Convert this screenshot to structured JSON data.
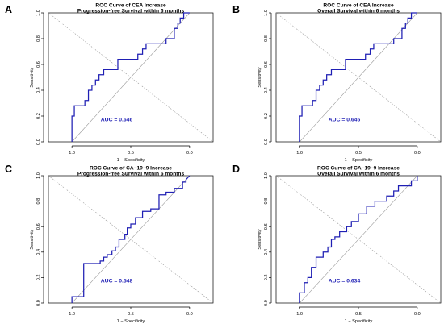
{
  "chart_data": [
    {
      "type": "line",
      "panel": "A",
      "title": "ROC Curve of CEA Increase",
      "subtitle": "Progression-free Survival within 6 months",
      "xlabel": "1 − Specificity",
      "ylabel": "Sensitivity",
      "x_ticks": [
        "1.0",
        "0.5",
        "0.0"
      ],
      "y_ticks": [
        "0.0",
        "0.2",
        "0.4",
        "0.6",
        "0.8",
        "1.0"
      ],
      "xlim": [
        1.2,
        -0.2
      ],
      "ylim": [
        0,
        1
      ],
      "annotation": "AUC = 0.646",
      "series": [
        {
          "x": [
            1.0,
            1.0,
            0.98,
            0.98,
            0.89,
            0.89,
            0.86,
            0.86,
            0.83,
            0.83,
            0.8,
            0.8,
            0.77,
            0.77,
            0.73,
            0.73,
            0.7,
            0.7,
            0.61,
            0.61,
            0.5,
            0.5,
            0.44,
            0.44,
            0.4,
            0.4,
            0.37,
            0.37,
            0.2,
            0.2,
            0.13,
            0.13,
            0.1,
            0.1,
            0.08,
            0.08,
            0.05,
            0.05,
            0.0
          ],
          "y": [
            0.0,
            0.2,
            0.2,
            0.28,
            0.28,
            0.32,
            0.32,
            0.4,
            0.4,
            0.44,
            0.44,
            0.48,
            0.48,
            0.52,
            0.52,
            0.56,
            0.56,
            0.56,
            0.56,
            0.64,
            0.64,
            0.64,
            0.64,
            0.68,
            0.68,
            0.72,
            0.72,
            0.76,
            0.76,
            0.8,
            0.8,
            0.88,
            0.88,
            0.92,
            0.92,
            0.96,
            0.96,
            1.0,
            1.0
          ]
        }
      ]
    },
    {
      "type": "line",
      "panel": "B",
      "title": "ROC Curve of CEA Increase",
      "subtitle": "Overall Survival within 6 months",
      "xlabel": "1 − Specificity",
      "ylabel": "Sensitivity",
      "x_ticks": [
        "1.0",
        "0.5",
        "0.0"
      ],
      "y_ticks": [
        "0.0",
        "0.2",
        "0.4",
        "0.6",
        "0.8",
        "1.0"
      ],
      "xlim": [
        1.2,
        -0.2
      ],
      "ylim": [
        0,
        1
      ],
      "annotation": "AUC = 0.646",
      "series": [
        {
          "x": [
            1.0,
            1.0,
            0.98,
            0.98,
            0.89,
            0.89,
            0.86,
            0.86,
            0.83,
            0.83,
            0.8,
            0.8,
            0.77,
            0.77,
            0.73,
            0.73,
            0.7,
            0.7,
            0.61,
            0.61,
            0.5,
            0.5,
            0.44,
            0.44,
            0.4,
            0.4,
            0.37,
            0.37,
            0.2,
            0.2,
            0.13,
            0.13,
            0.1,
            0.1,
            0.08,
            0.08,
            0.05,
            0.05,
            0.0
          ],
          "y": [
            0.0,
            0.2,
            0.2,
            0.28,
            0.28,
            0.32,
            0.32,
            0.4,
            0.4,
            0.44,
            0.44,
            0.48,
            0.48,
            0.52,
            0.52,
            0.56,
            0.56,
            0.56,
            0.56,
            0.64,
            0.64,
            0.64,
            0.64,
            0.68,
            0.68,
            0.72,
            0.72,
            0.76,
            0.76,
            0.8,
            0.8,
            0.88,
            0.88,
            0.92,
            0.92,
            0.96,
            0.96,
            1.0,
            1.0
          ]
        }
      ]
    },
    {
      "type": "line",
      "panel": "C",
      "title": "ROC Curve of CA−19−9 Increase",
      "subtitle": "Progression-free Survival within 6 months",
      "xlabel": "1 − Specificity",
      "ylabel": "Sensitivity",
      "x_ticks": [
        "1.0",
        "0.5",
        "0.0"
      ],
      "y_ticks": [
        "0.0",
        "0.2",
        "0.4",
        "0.6",
        "0.8",
        "1.0"
      ],
      "xlim": [
        1.2,
        -0.2
      ],
      "ylim": [
        0,
        1
      ],
      "annotation": "AUC = 0.548",
      "series": [
        {
          "x": [
            1.0,
            1.0,
            0.9,
            0.9,
            0.76,
            0.76,
            0.73,
            0.73,
            0.7,
            0.7,
            0.66,
            0.66,
            0.63,
            0.63,
            0.6,
            0.6,
            0.55,
            0.55,
            0.53,
            0.53,
            0.5,
            0.5,
            0.46,
            0.46,
            0.4,
            0.4,
            0.33,
            0.33,
            0.26,
            0.26,
            0.2,
            0.2,
            0.13,
            0.13,
            0.06,
            0.06,
            0.03,
            0.03,
            0.0
          ],
          "y": [
            0.0,
            0.05,
            0.05,
            0.31,
            0.31,
            0.33,
            0.33,
            0.36,
            0.36,
            0.38,
            0.38,
            0.41,
            0.41,
            0.44,
            0.44,
            0.5,
            0.5,
            0.54,
            0.54,
            0.59,
            0.59,
            0.62,
            0.62,
            0.67,
            0.67,
            0.72,
            0.72,
            0.74,
            0.74,
            0.85,
            0.85,
            0.87,
            0.87,
            0.9,
            0.9,
            0.95,
            0.95,
            0.97,
            1.0
          ]
        }
      ]
    },
    {
      "type": "line",
      "panel": "D",
      "title": "ROC Curve of CA−19−9 Increase",
      "subtitle": "Overall Survival within 6 months",
      "xlabel": "1 − Specificity",
      "ylabel": "Sensitivity",
      "x_ticks": [
        "1.0",
        "0.5",
        "0.0"
      ],
      "y_ticks": [
        "0.0",
        "0.2",
        "0.4",
        "0.6",
        "0.8",
        "1.0"
      ],
      "xlim": [
        1.2,
        -0.2
      ],
      "ylim": [
        0,
        1
      ],
      "annotation": "AUC = 0.634",
      "series": [
        {
          "x": [
            1.0,
            1.0,
            0.96,
            0.96,
            0.93,
            0.93,
            0.9,
            0.9,
            0.86,
            0.86,
            0.8,
            0.8,
            0.76,
            0.76,
            0.73,
            0.73,
            0.7,
            0.7,
            0.66,
            0.66,
            0.6,
            0.6,
            0.56,
            0.56,
            0.5,
            0.5,
            0.43,
            0.43,
            0.36,
            0.36,
            0.26,
            0.26,
            0.2,
            0.2,
            0.16,
            0.16,
            0.05,
            0.05,
            0.0,
            0.0
          ],
          "y": [
            0.0,
            0.08,
            0.08,
            0.16,
            0.16,
            0.2,
            0.2,
            0.28,
            0.28,
            0.36,
            0.36,
            0.4,
            0.4,
            0.44,
            0.44,
            0.5,
            0.5,
            0.52,
            0.52,
            0.56,
            0.56,
            0.6,
            0.6,
            0.64,
            0.64,
            0.7,
            0.7,
            0.76,
            0.76,
            0.8,
            0.8,
            0.84,
            0.84,
            0.88,
            0.88,
            0.92,
            0.92,
            0.96,
            0.96,
            1.0
          ]
        }
      ]
    }
  ]
}
